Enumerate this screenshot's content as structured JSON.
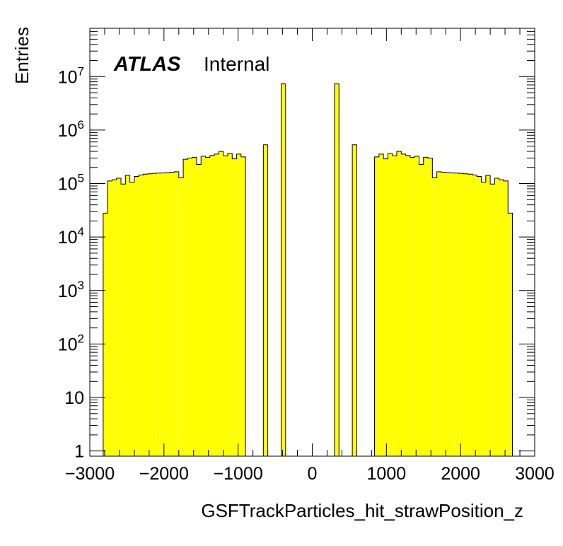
{
  "chart_data": {
    "type": "bar",
    "subtype": "histogram",
    "title": "",
    "xlabel": "GSFTrackParticles_hit_strawPosition_z",
    "ylabel": "Entries",
    "xlim": [
      -3000,
      3000
    ],
    "ylim": [
      0.8,
      80000000
    ],
    "yscale": "log",
    "grid": false,
    "legend": "none",
    "bar_color": "#ffff00",
    "edge_color": "#000000",
    "experiment_label": "ATLAS",
    "status_label": "Internal",
    "x_tick_labels": [
      "−3000",
      "−2000",
      "−1000",
      "0",
      "1000",
      "2000",
      "3000"
    ],
    "x_ticks": [
      -3000,
      -2000,
      -1000,
      0,
      1000,
      2000,
      3000
    ],
    "y_ticks": [
      {
        "value": 1,
        "base": "1",
        "exp": ""
      },
      {
        "value": 10,
        "base": "10",
        "exp": ""
      },
      {
        "value": 100,
        "base": "10",
        "exp": "2"
      },
      {
        "value": 1000,
        "base": "10",
        "exp": "3"
      },
      {
        "value": 10000,
        "base": "10",
        "exp": "4"
      },
      {
        "value": 100000,
        "base": "10",
        "exp": "5"
      },
      {
        "value": 1000000,
        "base": "10",
        "exp": "6"
      },
      {
        "value": 10000000,
        "base": "10",
        "exp": "7"
      }
    ],
    "bin_width": 60,
    "bins": [
      {
        "x0": -2820,
        "x1": -2760,
        "y": 28000
      },
      {
        "x0": -2760,
        "x1": -2700,
        "y": 112000
      },
      {
        "x0": -2700,
        "x1": -2640,
        "y": 118000
      },
      {
        "x0": -2640,
        "x1": -2580,
        "y": 126000
      },
      {
        "x0": -2580,
        "x1": -2520,
        "y": 98000
      },
      {
        "x0": -2520,
        "x1": -2460,
        "y": 142000
      },
      {
        "x0": -2460,
        "x1": -2400,
        "y": 106000
      },
      {
        "x0": -2400,
        "x1": -2340,
        "y": 136000
      },
      {
        "x0": -2340,
        "x1": -2280,
        "y": 145000
      },
      {
        "x0": -2280,
        "x1": -2220,
        "y": 150000
      },
      {
        "x0": -2220,
        "x1": -2160,
        "y": 152000
      },
      {
        "x0": -2160,
        "x1": -2100,
        "y": 155000
      },
      {
        "x0": -2100,
        "x1": -2040,
        "y": 157000
      },
      {
        "x0": -2040,
        "x1": -1980,
        "y": 158000
      },
      {
        "x0": -1980,
        "x1": -1920,
        "y": 160000
      },
      {
        "x0": -1920,
        "x1": -1860,
        "y": 163000
      },
      {
        "x0": -1860,
        "x1": -1800,
        "y": 166000
      },
      {
        "x0": -1800,
        "x1": -1740,
        "y": 128000
      },
      {
        "x0": -1740,
        "x1": -1680,
        "y": 285000
      },
      {
        "x0": -1680,
        "x1": -1620,
        "y": 300000
      },
      {
        "x0": -1620,
        "x1": -1560,
        "y": 310000
      },
      {
        "x0": -1560,
        "x1": -1500,
        "y": 228000
      },
      {
        "x0": -1500,
        "x1": -1440,
        "y": 325000
      },
      {
        "x0": -1440,
        "x1": -1380,
        "y": 310000
      },
      {
        "x0": -1380,
        "x1": -1320,
        "y": 335000
      },
      {
        "x0": -1320,
        "x1": -1260,
        "y": 355000
      },
      {
        "x0": -1260,
        "x1": -1200,
        "y": 400000
      },
      {
        "x0": -1200,
        "x1": -1140,
        "y": 330000
      },
      {
        "x0": -1140,
        "x1": -1080,
        "y": 365000
      },
      {
        "x0": -1080,
        "x1": -1020,
        "y": 290000
      },
      {
        "x0": -1020,
        "x1": -960,
        "y": 355000
      },
      {
        "x0": -960,
        "x1": -900,
        "y": 315000
      },
      {
        "x0": -660,
        "x1": -600,
        "y": 530000
      },
      {
        "x0": -420,
        "x1": -360,
        "y": 7300000
      },
      {
        "x0": 300,
        "x1": 360,
        "y": 7300000
      },
      {
        "x0": 540,
        "x1": 600,
        "y": 530000
      },
      {
        "x0": 840,
        "x1": 900,
        "y": 315000
      },
      {
        "x0": 900,
        "x1": 960,
        "y": 355000
      },
      {
        "x0": 960,
        "x1": 1020,
        "y": 290000
      },
      {
        "x0": 1020,
        "x1": 1080,
        "y": 365000
      },
      {
        "x0": 1080,
        "x1": 1140,
        "y": 330000
      },
      {
        "x0": 1140,
        "x1": 1200,
        "y": 400000
      },
      {
        "x0": 1200,
        "x1": 1260,
        "y": 355000
      },
      {
        "x0": 1260,
        "x1": 1320,
        "y": 335000
      },
      {
        "x0": 1320,
        "x1": 1380,
        "y": 310000
      },
      {
        "x0": 1380,
        "x1": 1440,
        "y": 325000
      },
      {
        "x0": 1440,
        "x1": 1500,
        "y": 228000
      },
      {
        "x0": 1500,
        "x1": 1560,
        "y": 310000
      },
      {
        "x0": 1560,
        "x1": 1620,
        "y": 300000
      },
      {
        "x0": 1620,
        "x1": 1680,
        "y": 128000
      },
      {
        "x0": 1680,
        "x1": 1740,
        "y": 166000
      },
      {
        "x0": 1740,
        "x1": 1800,
        "y": 163000
      },
      {
        "x0": 1800,
        "x1": 1860,
        "y": 160000
      },
      {
        "x0": 1860,
        "x1": 1920,
        "y": 158000
      },
      {
        "x0": 1920,
        "x1": 1980,
        "y": 157000
      },
      {
        "x0": 1980,
        "x1": 2040,
        "y": 155000
      },
      {
        "x0": 2040,
        "x1": 2100,
        "y": 152000
      },
      {
        "x0": 2100,
        "x1": 2160,
        "y": 150000
      },
      {
        "x0": 2160,
        "x1": 2220,
        "y": 145000
      },
      {
        "x0": 2220,
        "x1": 2280,
        "y": 136000
      },
      {
        "x0": 2280,
        "x1": 2340,
        "y": 106000
      },
      {
        "x0": 2340,
        "x1": 2400,
        "y": 142000
      },
      {
        "x0": 2400,
        "x1": 2460,
        "y": 98000
      },
      {
        "x0": 2460,
        "x1": 2520,
        "y": 126000
      },
      {
        "x0": 2520,
        "x1": 2580,
        "y": 118000
      },
      {
        "x0": 2580,
        "x1": 2640,
        "y": 112000
      },
      {
        "x0": 2640,
        "x1": 2700,
        "y": 28000
      }
    ]
  }
}
